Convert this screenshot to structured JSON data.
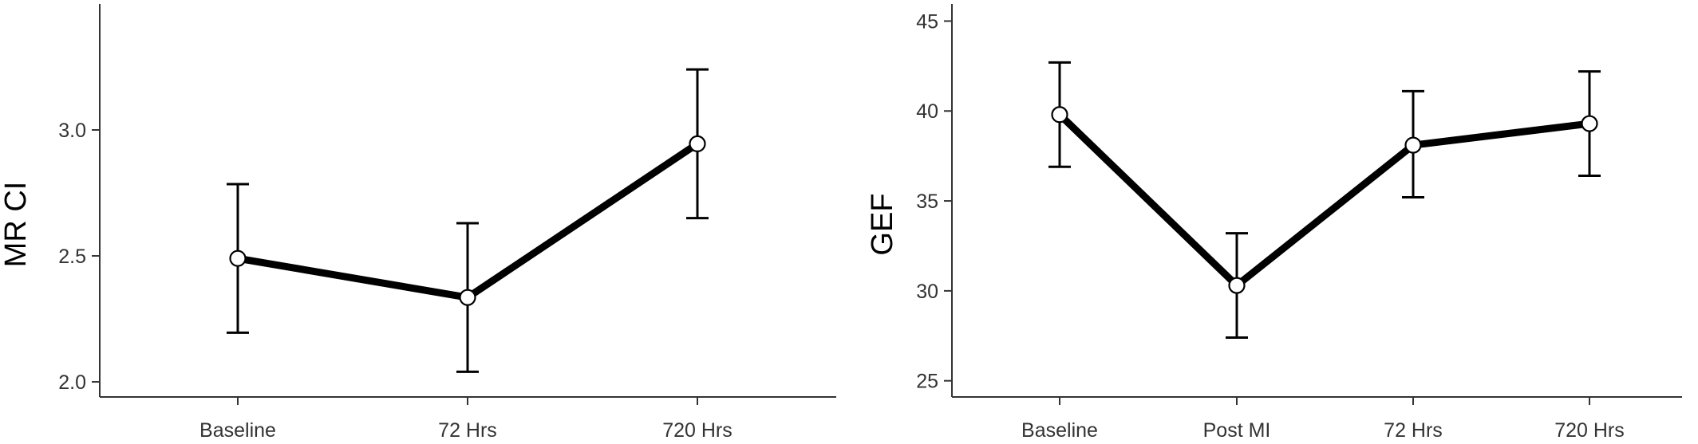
{
  "chart_data": [
    {
      "type": "line",
      "categories": [
        "Baseline",
        "72 Hrs",
        "720 Hrs"
      ],
      "series": [
        {
          "values": [
            2.49,
            2.335,
            2.945
          ],
          "error_low": [
            2.195,
            2.04,
            2.65
          ],
          "error_high": [
            2.785,
            2.63,
            3.24
          ]
        }
      ],
      "title": "",
      "xlabel": "",
      "ylabel": "MR CI",
      "ylim": [
        1.94,
        3.5
      ],
      "yticks": [
        2.0,
        2.5,
        3.0
      ],
      "ytick_labels": [
        "2.0",
        "2.5",
        "3.0"
      ],
      "grid": false,
      "colors": {
        "line": "#000000",
        "marker_fill": "#ffffff",
        "axis": "#333333"
      }
    },
    {
      "type": "line",
      "categories": [
        "Baseline",
        "Post MI",
        "72 Hrs",
        "720 Hrs"
      ],
      "series": [
        {
          "values": [
            39.8,
            30.3,
            38.1,
            39.3
          ],
          "error_low": [
            36.9,
            27.4,
            35.2,
            36.4
          ],
          "error_high": [
            42.7,
            33.2,
            41.1,
            42.2
          ]
        }
      ],
      "title": "",
      "xlabel": "",
      "ylabel": "GEF",
      "ylim": [
        24.1,
        45.95
      ],
      "yticks": [
        25,
        30,
        35,
        40,
        45
      ],
      "ytick_labels": [
        "25",
        "30",
        "35",
        "40",
        "45"
      ],
      "grid": false,
      "colors": {
        "line": "#000000",
        "marker_fill": "#ffffff",
        "axis": "#333333"
      }
    }
  ]
}
